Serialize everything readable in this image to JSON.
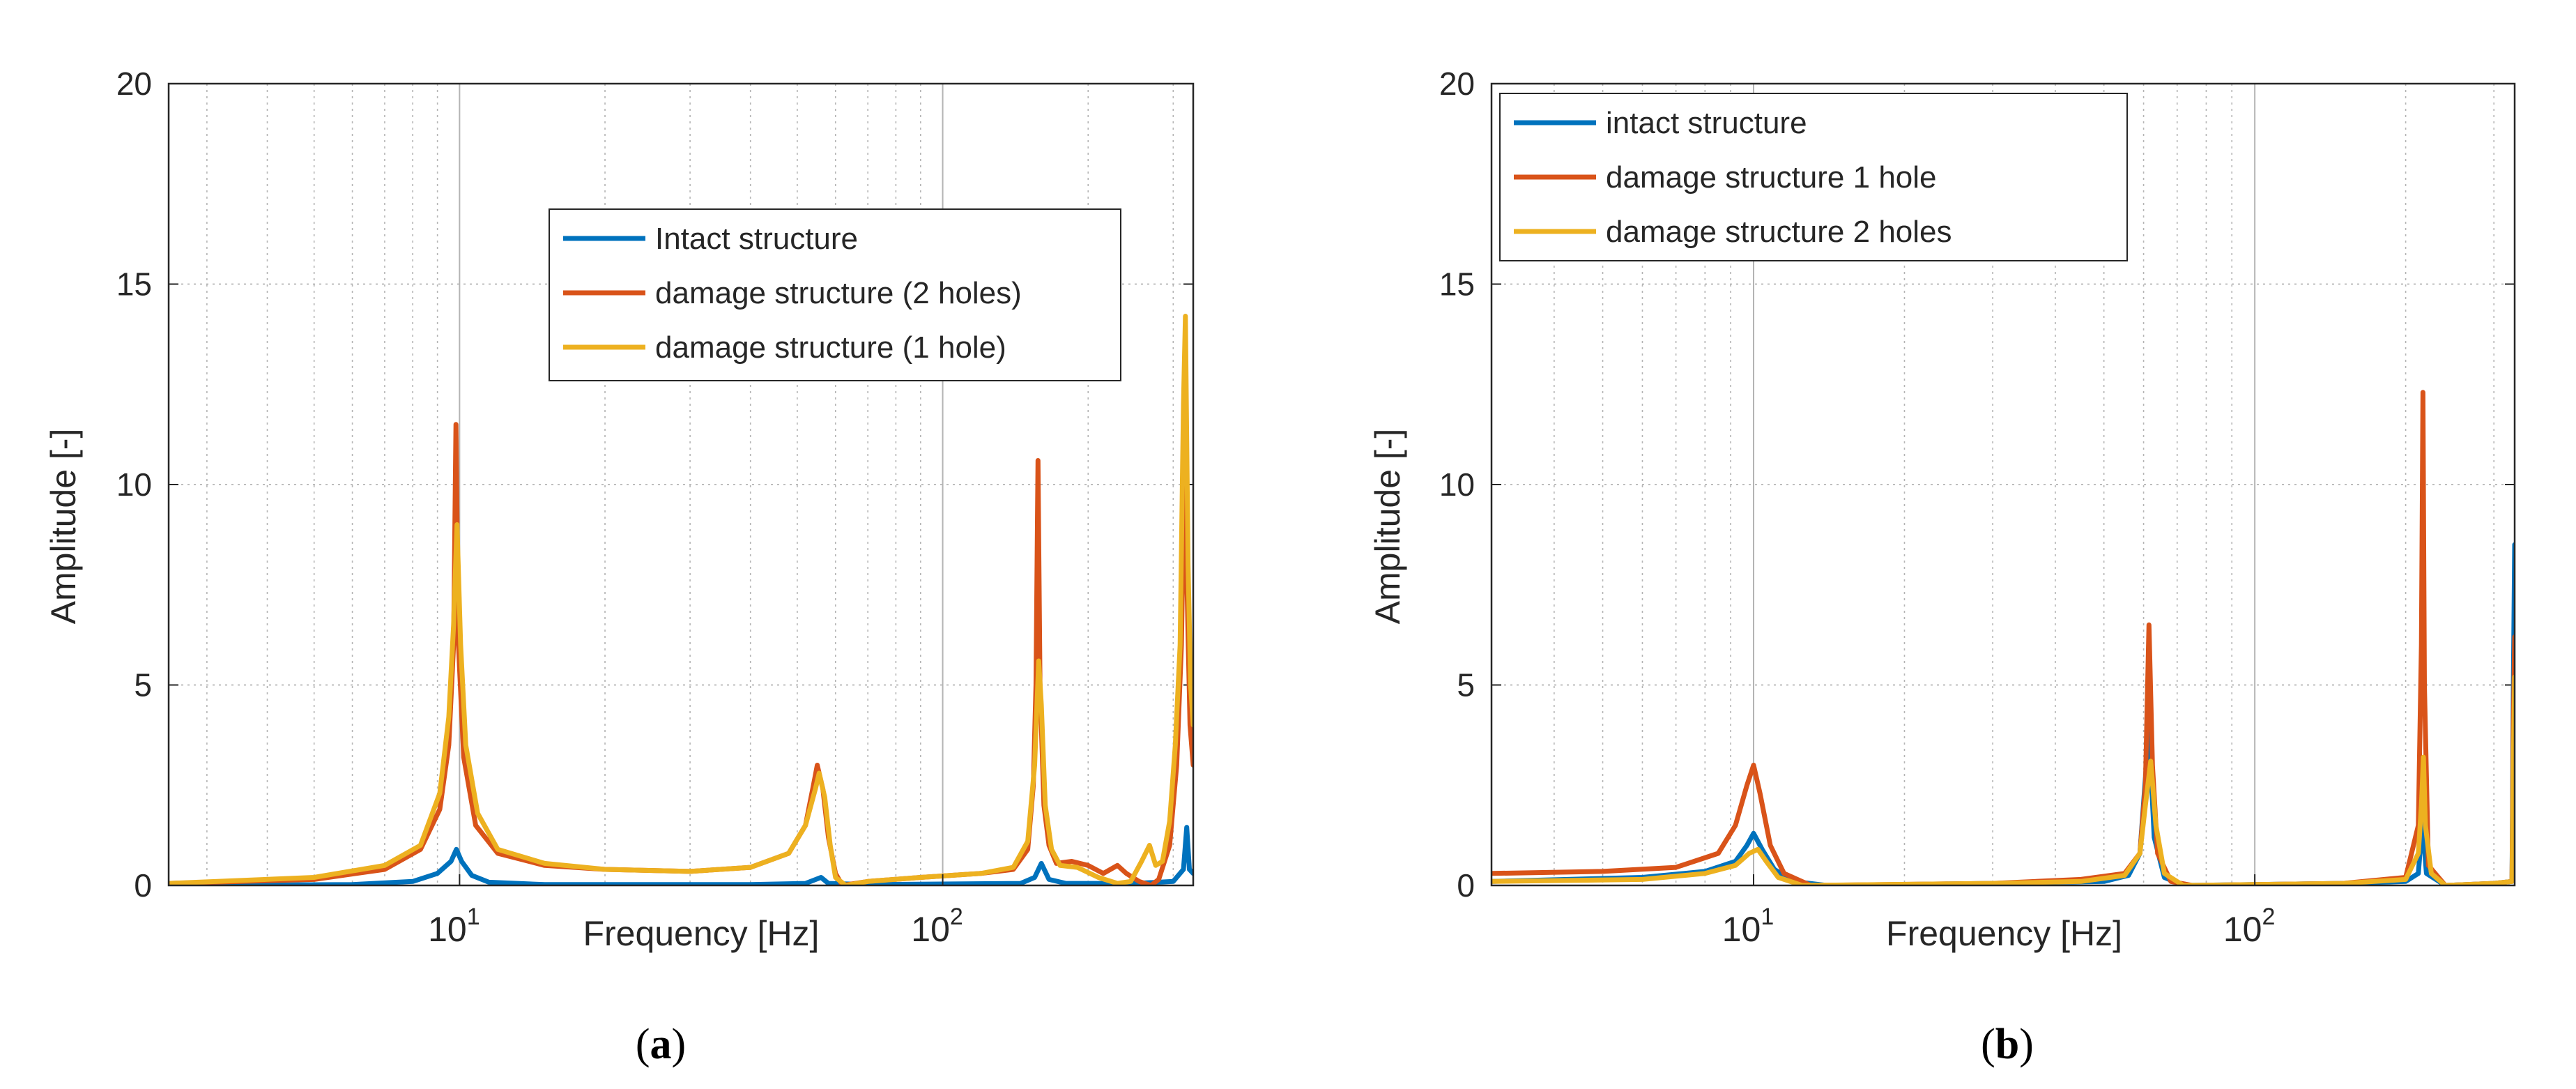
{
  "colors": {
    "intact": "#0072BD",
    "damage_a": "#D95319",
    "damage_b": "#EDB120",
    "grid": "#b4b4b4",
    "axis": "#262626"
  },
  "chart_data": [
    {
      "type": "line",
      "panel_label": "a",
      "xscale": "log",
      "xlim": [
        2.5,
        330
      ],
      "ylim": [
        0,
        20
      ],
      "yticks": [
        "0",
        "5",
        "10",
        "15",
        "20"
      ],
      "xticks": [
        {
          "value": 10,
          "base": "10",
          "exp": "1"
        },
        {
          "value": 100,
          "base": "10",
          "exp": "2"
        }
      ],
      "xlabel": "Frequency [Hz]",
      "ylabel": "Amplitude [-]",
      "grid": true,
      "legend_position": "top-center",
      "series": [
        {
          "name": "Intact structure",
          "color": "#0072BD",
          "points": [
            [
              2.5,
              0
            ],
            [
              6,
              0.02
            ],
            [
              8,
              0.1
            ],
            [
              9,
              0.3
            ],
            [
              9.6,
              0.6
            ],
            [
              9.85,
              0.9
            ],
            [
              10.1,
              0.6
            ],
            [
              10.6,
              0.25
            ],
            [
              11.5,
              0.08
            ],
            [
              15,
              0.02
            ],
            [
              40,
              0.02
            ],
            [
              52,
              0.05
            ],
            [
              56,
              0.2
            ],
            [
              58,
              0.05
            ],
            [
              70,
              0.02
            ],
            [
              145,
              0.05
            ],
            [
              155,
              0.2
            ],
            [
              160,
              0.55
            ],
            [
              166,
              0.15
            ],
            [
              180,
              0.05
            ],
            [
              250,
              0.05
            ],
            [
              300,
              0.1
            ],
            [
              315,
              0.4
            ],
            [
              320,
              1.45
            ],
            [
              324,
              0.4
            ],
            [
              330,
              0.3
            ]
          ]
        },
        {
          "name": "damage structure (2 holes)",
          "color": "#D95319",
          "points": [
            [
              2.5,
              0.05
            ],
            [
              5,
              0.15
            ],
            [
              7,
              0.4
            ],
            [
              8.3,
              0.9
            ],
            [
              9.1,
              1.9
            ],
            [
              9.5,
              3.5
            ],
            [
              9.72,
              6
            ],
            [
              9.83,
              11.5
            ],
            [
              9.95,
              6
            ],
            [
              10.2,
              3.2
            ],
            [
              10.8,
              1.5
            ],
            [
              12,
              0.8
            ],
            [
              15,
              0.5
            ],
            [
              20,
              0.4
            ],
            [
              30,
              0.35
            ],
            [
              40,
              0.45
            ],
            [
              48,
              0.8
            ],
            [
              52,
              1.5
            ],
            [
              54,
              2.5
            ],
            [
              55,
              3.0
            ],
            [
              56.5,
              2.4
            ],
            [
              58,
              1.2
            ],
            [
              60,
              0.3
            ],
            [
              62,
              0
            ],
            [
              70,
              0.1
            ],
            [
              90,
              0.2
            ],
            [
              120,
              0.3
            ],
            [
              140,
              0.4
            ],
            [
              150,
              0.9
            ],
            [
              154,
              2.5
            ],
            [
              156,
              5
            ],
            [
              157.5,
              10.6
            ],
            [
              159,
              5
            ],
            [
              162,
              2.0
            ],
            [
              166,
              1.0
            ],
            [
              172,
              0.55
            ],
            [
              185,
              0.6
            ],
            [
              200,
              0.5
            ],
            [
              215,
              0.3
            ],
            [
              230,
              0.5
            ],
            [
              240,
              0.3
            ],
            [
              255,
              0.1
            ],
            [
              270,
              0
            ],
            [
              280,
              0.15
            ],
            [
              295,
              1.0
            ],
            [
              305,
              3.0
            ],
            [
              312,
              6
            ],
            [
              316,
              10
            ],
            [
              320,
              7.8
            ],
            [
              325,
              4
            ],
            [
              330,
              3
            ]
          ]
        },
        {
          "name": "damage structure (1 hole)",
          "color": "#EDB120",
          "points": [
            [
              2.5,
              0.05
            ],
            [
              5,
              0.2
            ],
            [
              7,
              0.5
            ],
            [
              8.3,
              1.0
            ],
            [
              9.1,
              2.3
            ],
            [
              9.5,
              4.2
            ],
            [
              9.72,
              6.5
            ],
            [
              9.88,
              9.0
            ],
            [
              10.05,
              6
            ],
            [
              10.3,
              3.5
            ],
            [
              10.9,
              1.8
            ],
            [
              12,
              0.9
            ],
            [
              15,
              0.55
            ],
            [
              20,
              0.4
            ],
            [
              30,
              0.35
            ],
            [
              40,
              0.45
            ],
            [
              48,
              0.8
            ],
            [
              52,
              1.5
            ],
            [
              54.5,
              2.4
            ],
            [
              55.5,
              2.8
            ],
            [
              57,
              2.2
            ],
            [
              58.5,
              1.0
            ],
            [
              60,
              0.2
            ],
            [
              63,
              0
            ],
            [
              70,
              0.1
            ],
            [
              90,
              0.2
            ],
            [
              120,
              0.3
            ],
            [
              140,
              0.45
            ],
            [
              150,
              1.1
            ],
            [
              155,
              3
            ],
            [
              158,
              5.6
            ],
            [
              160,
              4.5
            ],
            [
              163,
              2.0
            ],
            [
              168,
              0.9
            ],
            [
              175,
              0.5
            ],
            [
              190,
              0.45
            ],
            [
              210,
              0.2
            ],
            [
              230,
              0.05
            ],
            [
              245,
              0.1
            ],
            [
              258,
              0.6
            ],
            [
              268,
              1.0
            ],
            [
              276,
              0.5
            ],
            [
              285,
              0.6
            ],
            [
              295,
              1.6
            ],
            [
              303,
              3.5
            ],
            [
              310,
              6
            ],
            [
              315,
              12
            ],
            [
              318,
              14.2
            ],
            [
              322,
              8
            ],
            [
              326,
              5
            ],
            [
              330,
              4
            ]
          ]
        }
      ]
    },
    {
      "type": "line",
      "panel_label": "b",
      "xscale": "log",
      "xlim": [
        3,
        330
      ],
      "ylim": [
        0,
        20
      ],
      "yticks": [
        "0",
        "5",
        "10",
        "15",
        "20"
      ],
      "xticks": [
        {
          "value": 10,
          "base": "10",
          "exp": "1"
        },
        {
          "value": 100,
          "base": "10",
          "exp": "2"
        }
      ],
      "xlabel": "Frequency [Hz]",
      "ylabel": "Amplitude [-]",
      "grid": true,
      "legend_position": "top-left",
      "series": [
        {
          "name": "intact structure",
          "color": "#0072BD",
          "points": [
            [
              3,
              0.1
            ],
            [
              6,
              0.2
            ],
            [
              8,
              0.35
            ],
            [
              9.2,
              0.6
            ],
            [
              9.7,
              1.0
            ],
            [
              10,
              1.3
            ],
            [
              10.4,
              0.9
            ],
            [
              11,
              0.4
            ],
            [
              12,
              0.1
            ],
            [
              14,
              0
            ],
            [
              30,
              0.05
            ],
            [
              50,
              0.1
            ],
            [
              56,
              0.25
            ],
            [
              59,
              0.8
            ],
            [
              61.5,
              3.9
            ],
            [
              63,
              1.2
            ],
            [
              66,
              0.2
            ],
            [
              72,
              0
            ],
            [
              150,
              0.05
            ],
            [
              200,
              0.1
            ],
            [
              212,
              0.3
            ],
            [
              216,
              1.6
            ],
            [
              220,
              0.3
            ],
            [
              240,
              0
            ],
            [
              300,
              0.05
            ],
            [
              326,
              0.1
            ],
            [
              328,
              5
            ],
            [
              330,
              8.5
            ]
          ]
        },
        {
          "name": "damage structure 1 hole",
          "color": "#D95319",
          "points": [
            [
              3,
              0.3
            ],
            [
              5,
              0.35
            ],
            [
              7,
              0.45
            ],
            [
              8.5,
              0.8
            ],
            [
              9.2,
              1.5
            ],
            [
              9.7,
              2.5
            ],
            [
              10,
              3.0
            ],
            [
              10.3,
              2.3
            ],
            [
              10.8,
              1.0
            ],
            [
              11.5,
              0.3
            ],
            [
              13,
              0
            ],
            [
              30,
              0.05
            ],
            [
              45,
              0.15
            ],
            [
              55,
              0.3
            ],
            [
              59,
              0.8
            ],
            [
              60.5,
              2.5
            ],
            [
              61.5,
              6.5
            ],
            [
              62.5,
              3
            ],
            [
              64,
              0.8
            ],
            [
              68,
              0.1
            ],
            [
              75,
              0
            ],
            [
              150,
              0.05
            ],
            [
              200,
              0.2
            ],
            [
              212,
              1.5
            ],
            [
              215,
              6
            ],
            [
              216.5,
              12.3
            ],
            [
              218,
              5
            ],
            [
              222,
              0.5
            ],
            [
              240,
              0
            ],
            [
              300,
              0.05
            ],
            [
              326,
              0.1
            ],
            [
              328,
              4
            ],
            [
              330,
              6.2
            ]
          ]
        },
        {
          "name": "damage structure 2 holes",
          "color": "#EDB120",
          "points": [
            [
              3,
              0.1
            ],
            [
              6,
              0.15
            ],
            [
              8,
              0.3
            ],
            [
              9.2,
              0.5
            ],
            [
              9.8,
              0.8
            ],
            [
              10.2,
              0.9
            ],
            [
              10.6,
              0.6
            ],
            [
              11.2,
              0.2
            ],
            [
              12.5,
              0
            ],
            [
              30,
              0.05
            ],
            [
              45,
              0.1
            ],
            [
              55,
              0.25
            ],
            [
              59,
              0.8
            ],
            [
              60.5,
              2.0
            ],
            [
              62,
              3.1
            ],
            [
              63.5,
              1.5
            ],
            [
              66,
              0.3
            ],
            [
              72,
              0
            ],
            [
              150,
              0.05
            ],
            [
              200,
              0.15
            ],
            [
              212,
              0.8
            ],
            [
              215,
              2.0
            ],
            [
              217,
              3.2
            ],
            [
              219,
              1.5
            ],
            [
              225,
              0.3
            ],
            [
              240,
              0
            ],
            [
              300,
              0.05
            ],
            [
              326,
              0.1
            ],
            [
              328,
              3
            ],
            [
              330,
              5.2
            ]
          ]
        }
      ]
    }
  ]
}
